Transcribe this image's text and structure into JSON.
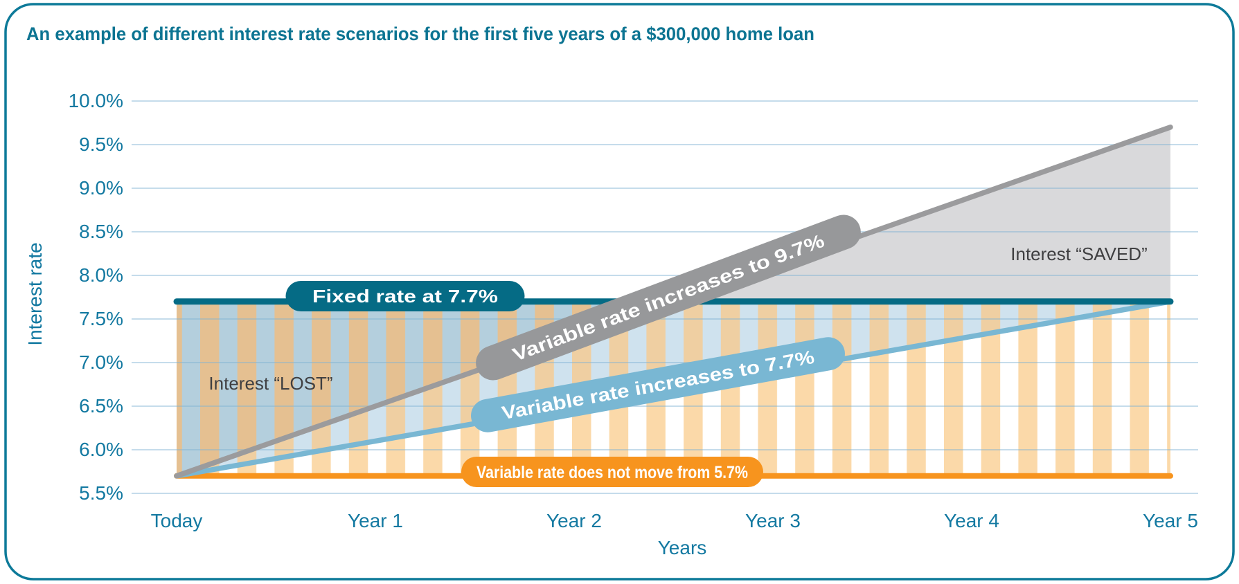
{
  "title": "An example of different interest rate scenarios for the first five years of a $300,000 home loan",
  "colors": {
    "panel_border": "#0d7a99",
    "title_teal": "#0c7492",
    "axis_teal": "#1379a1",
    "gridline": "#7fb3d4",
    "fixed_teal": "#056b85",
    "gray_line": "#9b9b9d",
    "gray_pill": "#97989a",
    "gray_area": "#d9d9db",
    "blue_line": "#79b7d3",
    "blue_area_light": "#cfe2ee",
    "blue_area_dark": "#b4cfdd",
    "stripe_on_white": "#fbd9a9",
    "stripe_on_light_blue": "#efcfa2",
    "stripe_on_dark_blue": "#e5c091",
    "orange": "#f7941e",
    "annotation_text": "#3f3f41"
  },
  "chart_data": {
    "type": "line",
    "title": "An example of different interest rate scenarios for the first five years of a $300,000 home loan",
    "xlabel": "Years",
    "ylabel": "Interest rate",
    "x_categories": [
      "Today",
      "Year 1",
      "Year 2",
      "Year 3",
      "Year 4",
      "Year 5"
    ],
    "y_ticks": [
      "10.0%",
      "9.5%",
      "9.0%",
      "8.5%",
      "8.0%",
      "7.5%",
      "7.0%",
      "6.5%",
      "6.0%",
      "5.5%"
    ],
    "ylim": [
      5.5,
      10.0
    ],
    "grid": "horizontal",
    "series": [
      {
        "name": "fixed-rate",
        "label": "Fixed rate at 7.7%",
        "values": [
          7.7,
          7.7,
          7.7,
          7.7,
          7.7,
          7.7
        ],
        "color": "#056b85"
      },
      {
        "name": "variable-rate-rising-high",
        "label": "Variable rate increases to 9.7%",
        "values": [
          5.7,
          6.5,
          7.3,
          8.1,
          8.9,
          9.7
        ],
        "color": "#9b9b9d"
      },
      {
        "name": "variable-rate-rising-low",
        "label": "Variable rate increases to 7.7%",
        "values": [
          5.7,
          6.1,
          6.5,
          6.9,
          7.3,
          7.7
        ],
        "color": "#79b7d3"
      },
      {
        "name": "variable-rate-flat",
        "label": "Variable rate does not move from 5.7%",
        "values": [
          5.7,
          5.7,
          5.7,
          5.7,
          5.7,
          5.7
        ],
        "color": "#f7941e"
      }
    ],
    "annotations": [
      {
        "name": "interest-lost",
        "text": "Interest “LOST”"
      },
      {
        "name": "interest-saved",
        "text": "Interest “SAVED”"
      }
    ]
  }
}
